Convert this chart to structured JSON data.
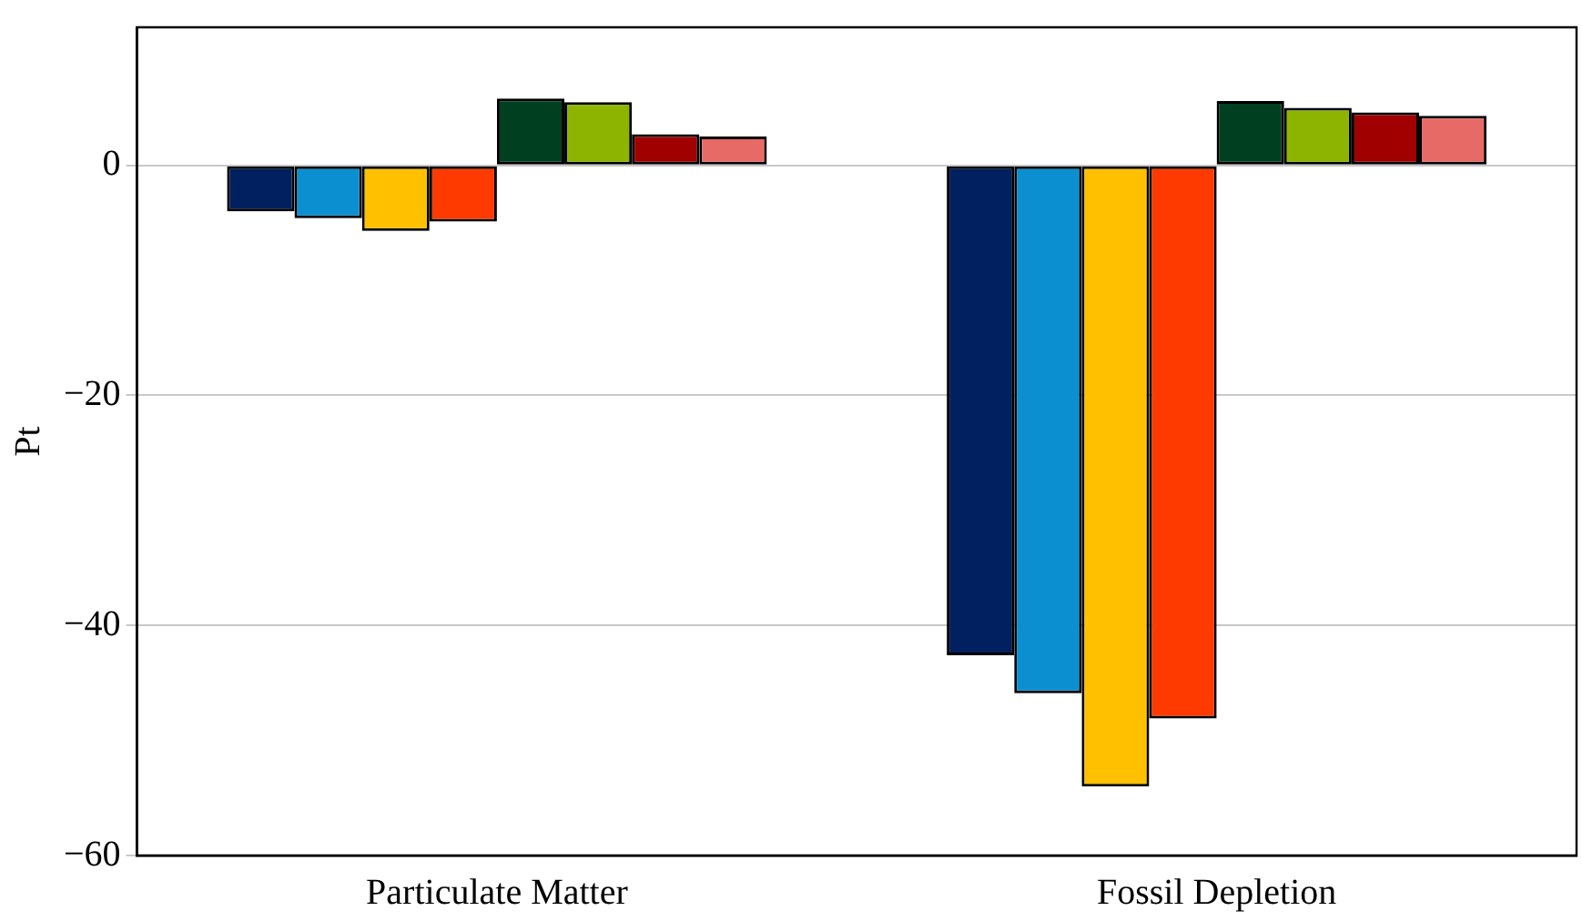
{
  "chart_data": {
    "type": "bar",
    "ylabel": "Pt",
    "categories": [
      "Particulate Matter",
      "Fossil Depletion"
    ],
    "series": [
      {
        "color": "#002060",
        "values": [
          -4.0,
          -42.6
        ]
      },
      {
        "color": "#0b8fd0",
        "values": [
          -4.6,
          -45.9
        ]
      },
      {
        "color": "#ffc000",
        "values": [
          -5.7,
          -54.0
        ]
      },
      {
        "color": "#ff3a00",
        "values": [
          -4.9,
          -48.1
        ]
      },
      {
        "color": "#004020",
        "values": [
          5.8,
          5.6
        ]
      },
      {
        "color": "#8db500",
        "values": [
          5.5,
          5.0
        ]
      },
      {
        "color": "#a00000",
        "values": [
          2.7,
          4.6
        ]
      },
      {
        "color": "#e86a66",
        "values": [
          2.5,
          4.3
        ]
      }
    ],
    "ylim": [
      -60,
      12
    ],
    "yticks": [
      {
        "value": -60,
        "label": "−60"
      },
      {
        "value": -40,
        "label": "−40"
      },
      {
        "value": -20,
        "label": "−20"
      },
      0
    ],
    "grid": "y",
    "legend": false
  }
}
